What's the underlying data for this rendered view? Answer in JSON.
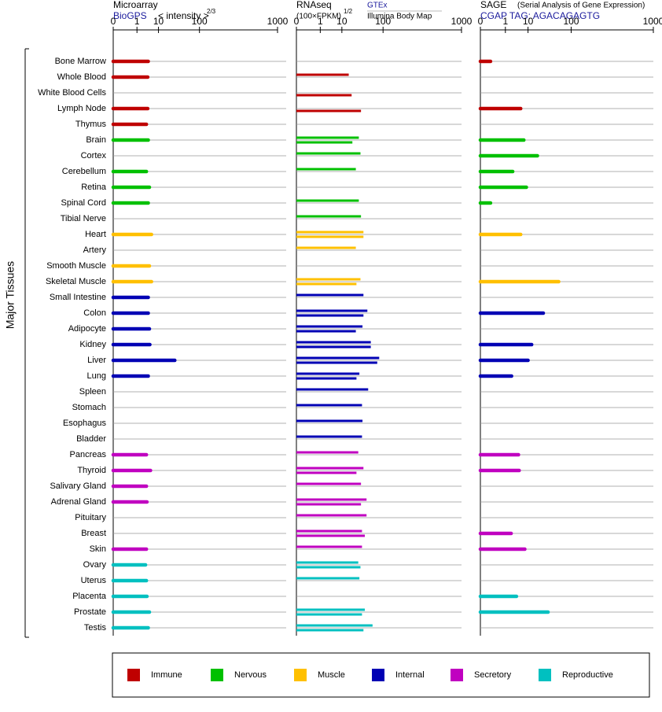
{
  "y_label": "Major Tissues",
  "groups": [
    {
      "name": "Immune",
      "color": "#bf0000",
      "tissues": [
        "Bone Marrow",
        "Whole Blood",
        "White Blood Cells",
        "Lymph Node",
        "Thymus"
      ]
    },
    {
      "name": "Nervous",
      "color": "#00c000",
      "tissues": [
        "Brain",
        "Cortex",
        "Cerebellum",
        "Retina",
        "Spinal Cord",
        "Tibial Nerve"
      ]
    },
    {
      "name": "Muscle",
      "color": "#ffc000",
      "tissues": [
        "Heart",
        "Artery",
        "Smooth Muscle",
        "Skeletal Muscle"
      ]
    },
    {
      "name": "Internal",
      "color": "#0000b4",
      "tissues": [
        "Small Intestine",
        "Colon",
        "Adipocyte",
        "Kidney",
        "Liver",
        "Lung",
        "Spleen",
        "Stomach",
        "Esophagus",
        "Bladder"
      ]
    },
    {
      "name": "Secretory",
      "color": "#c000c0",
      "tissues": [
        "Pancreas",
        "Thyroid",
        "Salivary Gland",
        "Adrenal Gland",
        "Pituitary",
        "Breast",
        "Skin"
      ]
    },
    {
      "name": "Reproductive",
      "color": "#00c0c0",
      "tissues": [
        "Ovary",
        "Uterus",
        "Placenta",
        "Prostate",
        "Testis"
      ]
    }
  ],
  "chart_data": [
    {
      "type": "bar",
      "title": "Microarray",
      "source": "BioGPS",
      "x_label": "< intensity >",
      "x_label_exponent": "2/3",
      "xlim": [
        0,
        1000
      ],
      "xticks": [
        0,
        1,
        10,
        100,
        1000
      ],
      "series": [
        {
          "values": [
            4,
            3.8,
            null,
            3.8,
            3.3,
            4,
            null,
            3.3,
            4.5,
            4,
            null,
            5.5,
            null,
            4.5,
            5.5,
            4,
            4,
            4.5,
            4.7,
            30,
            4,
            null,
            null,
            null,
            null,
            3.3,
            5,
            3.3,
            3.5,
            null,
            null,
            3.3,
            3,
            3.3,
            3.5,
            4.5,
            4
          ]
        }
      ]
    },
    {
      "type": "bar",
      "title": "RNAseq",
      "x_label": "(100×FPKM)",
      "x_label_exponent": "1/2",
      "xlim": [
        0,
        1000
      ],
      "xticks": [
        0,
        1,
        10,
        100,
        1000
      ],
      "series": [
        {
          "name": "GTEx",
          "values": [
            null,
            16.5,
            null,
            null,
            null,
            31,
            34,
            26,
            null,
            31,
            35,
            40,
            26,
            null,
            34,
            40,
            49,
            38,
            58,
            85,
            32,
            51,
            37,
            38,
            37,
            30,
            40,
            35,
            47,
            47,
            37,
            37,
            30,
            32,
            null,
            43,
            63
          ]
        },
        {
          "name": "Illumina Body Map",
          "values": [
            null,
            null,
            20,
            35,
            null,
            21,
            null,
            null,
            null,
            null,
            null,
            40,
            null,
            null,
            27,
            null,
            40,
            26,
            58,
            78,
            27,
            null,
            null,
            null,
            null,
            null,
            27,
            null,
            35,
            null,
            43,
            null,
            34,
            null,
            null,
            37,
            40
          ]
        }
      ]
    },
    {
      "type": "bar",
      "title": "SAGE",
      "subtitle": "(Serial Analysis of Gene Expression)",
      "source": "CGAP TAG: AGACAGAGTG",
      "xlim": [
        0,
        1000
      ],
      "xticks": [
        0,
        1,
        10,
        100,
        1000
      ],
      "series": [
        {
          "values": [
            0.04,
            null,
            null,
            5.5,
            null,
            7.2,
            19,
            2.5,
            8.8,
            0.04,
            null,
            5.5,
            null,
            null,
            59,
            null,
            27,
            null,
            13,
            10,
            2.2,
            null,
            null,
            null,
            null,
            4.5,
            4.8,
            null,
            null,
            null,
            2.1,
            7.8,
            null,
            null,
            3.7,
            35,
            null
          ]
        }
      ]
    }
  ]
}
